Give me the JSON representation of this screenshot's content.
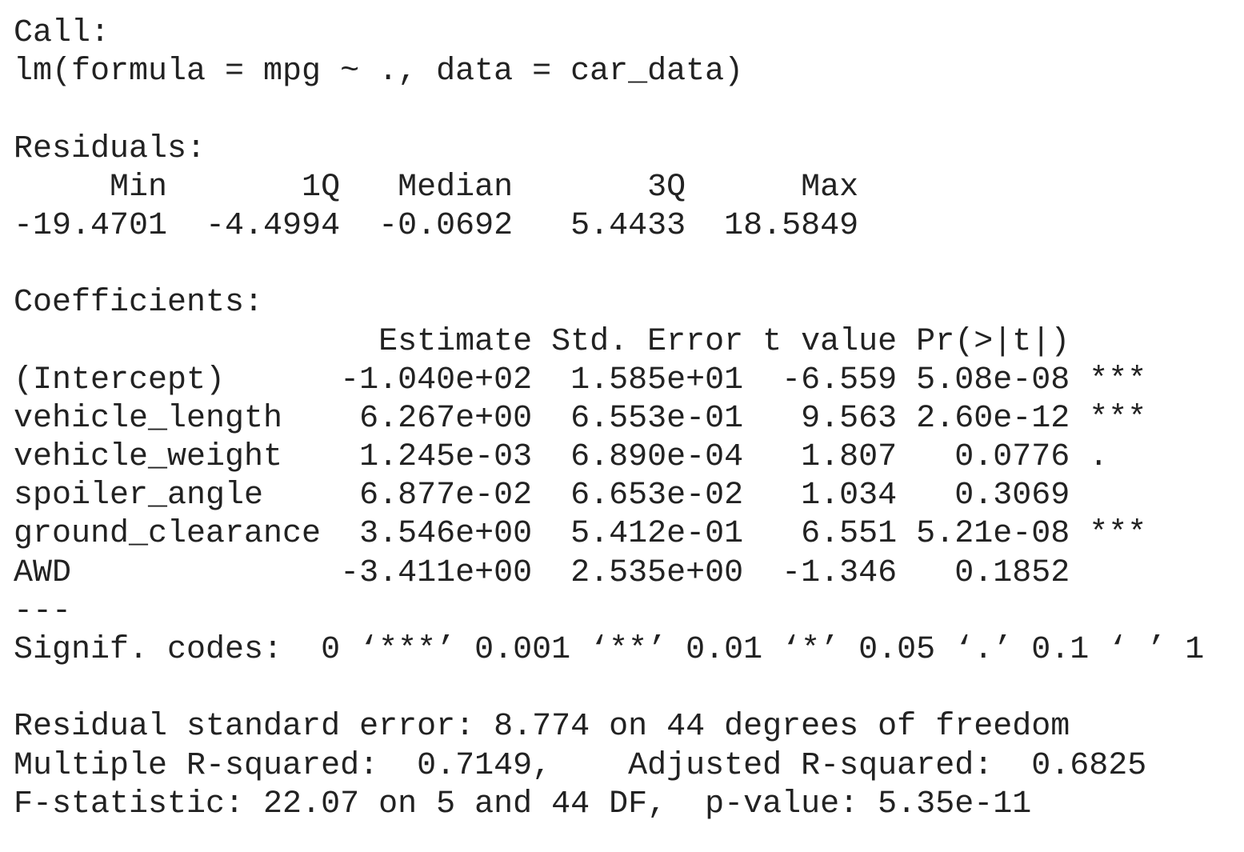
{
  "output": {
    "lines": [
      "Call:",
      "lm(formula = mpg ~ ., data = car_data)",
      "",
      "Residuals:",
      "     Min       1Q   Median       3Q      Max ",
      "-19.4701  -4.4994  -0.0692   5.4433  18.5849 ",
      "",
      "Coefficients:",
      "                   Estimate Std. Error t value Pr(>|t|)    ",
      "(Intercept)      -1.040e+02  1.585e+01  -6.559 5.08e-08 ***",
      "vehicle_length    6.267e+00  6.553e-01   9.563 2.60e-12 ***",
      "vehicle_weight    1.245e-03  6.890e-04   1.807   0.0776 .  ",
      "spoiler_angle     6.877e-02  6.653e-02   1.034   0.3069    ",
      "ground_clearance  3.546e+00  5.412e-01   6.551 5.21e-08 ***",
      "AWD              -3.411e+00  2.535e+00  -1.346   0.1852    ",
      "---",
      "Signif. codes:  0 ‘***’ 0.001 ‘**’ 0.01 ‘*’ 0.05 ‘.’ 0.1 ‘ ’ 1",
      "",
      "Residual standard error: 8.774 on 44 degrees of freedom",
      "Multiple R-squared:  0.7149,\tAdjusted R-squared:  0.6825 ",
      "F-statistic: 22.07 on 5 and 44 DF,  p-value: 5.35e-11"
    ]
  }
}
